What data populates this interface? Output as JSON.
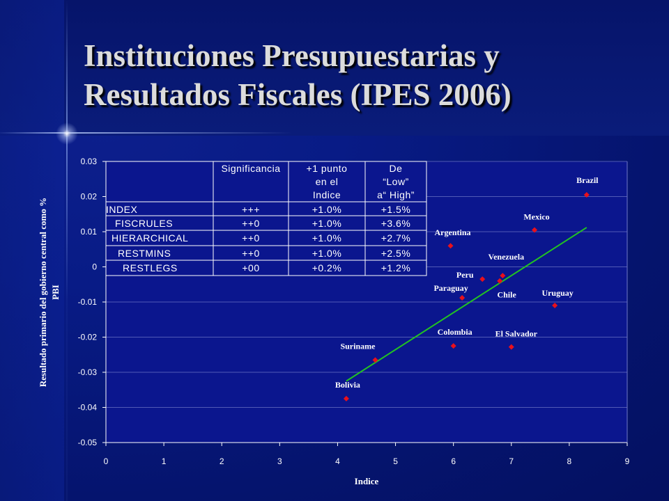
{
  "slide": {
    "title_line1": "Instituciones Presupuestarias y",
    "title_line2": "Resultados Fiscales (IPES 2006)"
  },
  "chart_data": {
    "type": "scatter",
    "xlabel": "Indice",
    "ylabel_line1": "Resultado primario del gobierno central como %",
    "ylabel_line2": "PBI",
    "xlim": [
      0,
      9
    ],
    "ylim": [
      -0.05,
      0.03
    ],
    "x_ticks": [
      "0",
      "1",
      "2",
      "3",
      "4",
      "5",
      "6",
      "7",
      "8",
      "9"
    ],
    "y_ticks": [
      "0.03",
      "0.02",
      "0.01",
      "0",
      "-0.01",
      "-0.02",
      "-0.03",
      "-0.04",
      "-0.05"
    ],
    "grid": "horizontal",
    "marker_color": "#e8101c",
    "trend_color": "#22c322",
    "points": [
      {
        "label": "Bolivia",
        "x": 4.15,
        "y": -0.0375
      },
      {
        "label": "Suriname",
        "x": 4.65,
        "y": -0.0265
      },
      {
        "label": "Colombia",
        "x": 6.0,
        "y": -0.0225
      },
      {
        "label": "Argentina",
        "x": 5.95,
        "y": 0.006
      },
      {
        "label": "Paraguay",
        "x": 6.15,
        "y": -0.0088
      },
      {
        "label": "Peru",
        "x": 6.5,
        "y": -0.0035
      },
      {
        "label": "Venezuela",
        "x": 6.85,
        "y": -0.0025
      },
      {
        "label": "Chile",
        "x": 6.8,
        "y": -0.004
      },
      {
        "label": "El Salvador",
        "x": 7.0,
        "y": -0.0228
      },
      {
        "label": "Mexico",
        "x": 7.4,
        "y": 0.0105
      },
      {
        "label": "Uruguay",
        "x": 7.75,
        "y": -0.011
      },
      {
        "label": "Brazil",
        "x": 8.3,
        "y": 0.0205
      }
    ],
    "trend_line": {
      "x": [
        4.15,
        8.3
      ],
      "y": [
        -0.0325,
        0.0112
      ]
    },
    "table": {
      "headers": [
        [
          "Significancia"
        ],
        [
          "+1 punto",
          "en el",
          "Indice"
        ],
        [
          "De",
          "“Low”",
          "a“ High”"
        ]
      ],
      "rows": [
        [
          "INDEX",
          "+++",
          "+1.0%",
          "+1.5%"
        ],
        [
          "FISCRULES",
          "++0",
          "+1.0%",
          "+3.6%"
        ],
        [
          "HIERARCHICAL",
          "++0",
          "+1.0%",
          "+2.7%"
        ],
        [
          "RESTMINS",
          "++0",
          "+1.0%",
          "+2.5%"
        ],
        [
          "RESTLEGS",
          "+00",
          "+0.2%",
          "+1.2%"
        ]
      ]
    }
  }
}
